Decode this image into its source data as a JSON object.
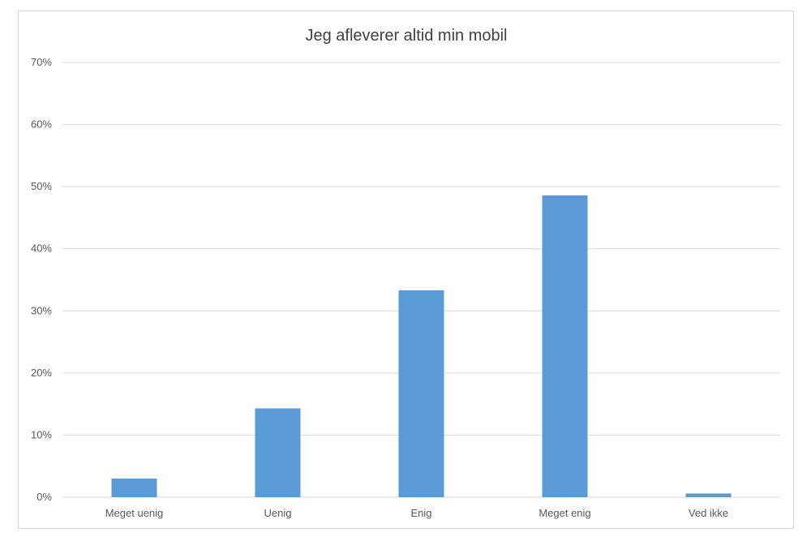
{
  "chart_data": {
    "type": "bar",
    "title": "Jeg afleverer altid min mobil",
    "xlabel": "",
    "ylabel": "",
    "categories": [
      "Meget uenig",
      "Uenig",
      "Enig",
      "Meget enig",
      "Ved ikke"
    ],
    "values": [
      3,
      14.3,
      33.3,
      48.6,
      0.6
    ],
    "ylim": [
      0,
      70
    ],
    "yticks": [
      0,
      10,
      20,
      30,
      40,
      50,
      60,
      70
    ],
    "ytick_labels": [
      "0%",
      "10%",
      "20%",
      "30%",
      "40%",
      "50%",
      "60%",
      "70%"
    ],
    "grid": true,
    "legend": "none",
    "bar_color": "#5b9bd5",
    "grid_color": "#d9d9d9"
  }
}
